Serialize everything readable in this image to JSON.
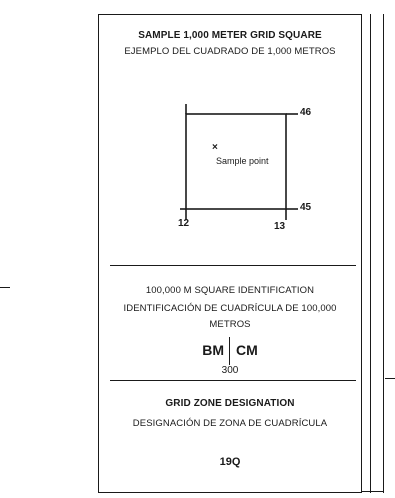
{
  "sample_square": {
    "title": "SAMPLE 1,000 METER GRID SQUARE",
    "subtitle": "EJEMPLO DEL CUADRADO DE 1,000 METROS",
    "label_north": "46",
    "label_south": "45",
    "label_west": "12",
    "label_east": "13",
    "sample_mark": "×",
    "sample_label": "Sample point"
  },
  "square_id": {
    "title": "100,000 M SQUARE IDENTIFICATION",
    "subtitle_line1": "IDENTIFICACIÓN DE CUADRÍCULA DE 100,000",
    "subtitle_line2": "METROS",
    "letters_left": "BM",
    "letters_right": "CM",
    "below_value": "300"
  },
  "grid_zone": {
    "title": "GRID ZONE DESIGNATION",
    "subtitle": "DESIGNACIÓN DE ZONA DE CUADRÍCULA",
    "value": "19Q"
  }
}
